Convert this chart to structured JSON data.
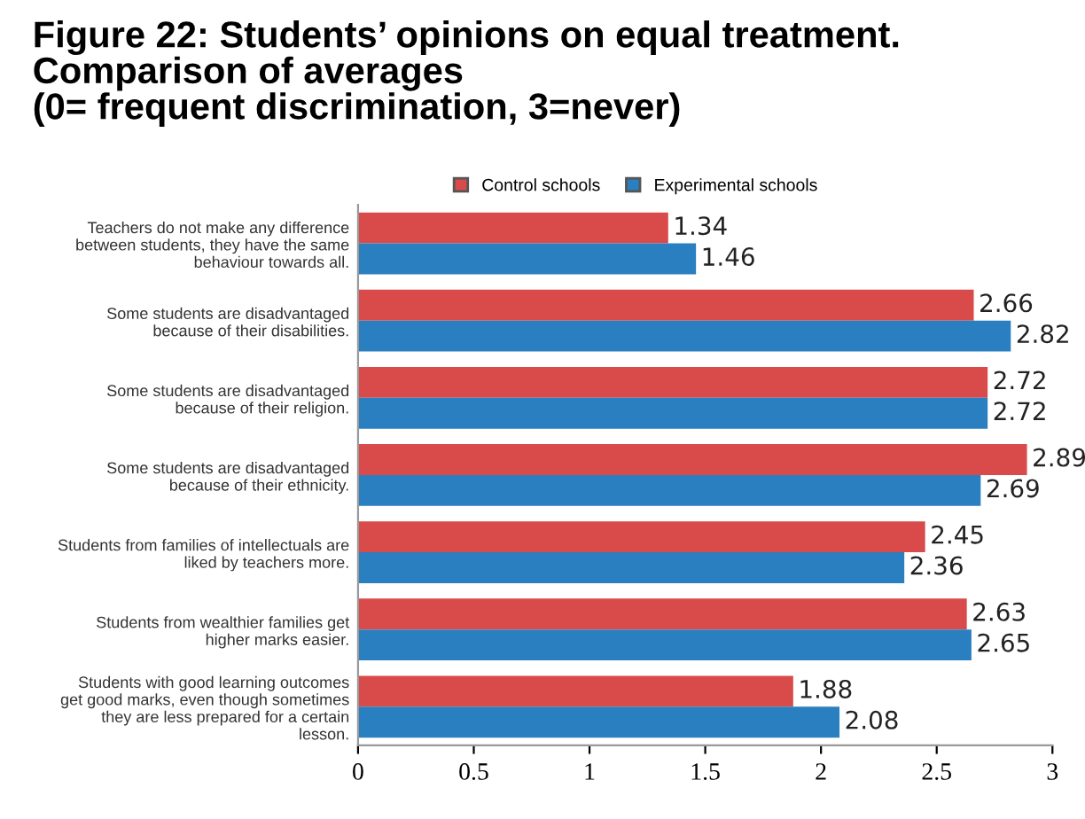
{
  "chart_data": {
    "type": "bar",
    "orientation": "horizontal",
    "title": "Figure 22: Students’ opinions on equal treatment.\nComparison of averages\n(0= frequent discrimination, 3=never)",
    "categories": [
      "Teachers do not make any difference\nbetween students, they have the same\nbehaviour towards all.",
      "Some students are disadvantaged\nbecause of their disabilities.",
      "Some students are disadvantaged\nbecause of their religion.",
      "Some students are disadvantaged\nbecause of their ethnicity.",
      "Students from families of intellectuals are\nliked by teachers more.",
      "Students from wealthier families get\nhigher marks easier.",
      "Students with good learning outcomes\nget good marks, even though sometimes\nthey are less prepared for a certain\nlesson."
    ],
    "series": [
      {
        "name": "Control schools",
        "color": "#d94b4b",
        "values": [
          1.34,
          2.66,
          2.72,
          2.89,
          2.45,
          2.63,
          1.88
        ]
      },
      {
        "name": "Experimental schools",
        "color": "#2a7fc0",
        "values": [
          1.46,
          2.82,
          2.72,
          2.69,
          2.36,
          2.65,
          2.08
        ]
      }
    ],
    "xlim": [
      0,
      3
    ],
    "xticks": [
      0,
      0.5,
      1,
      1.5,
      2,
      2.5,
      3
    ],
    "data_labels": true,
    "legend": "top",
    "grid": false
  }
}
